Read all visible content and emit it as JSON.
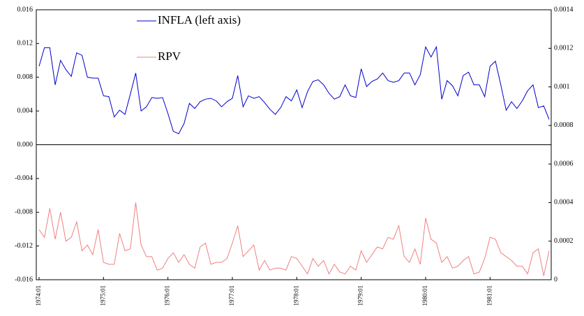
{
  "chart_data": {
    "type": "line",
    "categories": [
      "1974:01",
      null,
      null,
      null,
      null,
      null,
      null,
      null,
      null,
      null,
      null,
      null,
      "1975:01",
      null,
      null,
      null,
      null,
      null,
      null,
      null,
      null,
      null,
      null,
      null,
      "1976:01",
      null,
      null,
      null,
      null,
      null,
      null,
      null,
      null,
      null,
      null,
      null,
      "1977:01",
      null,
      null,
      null,
      null,
      null,
      null,
      null,
      null,
      null,
      null,
      null,
      "1978:01",
      null,
      null,
      null,
      null,
      null,
      null,
      null,
      null,
      null,
      null,
      null,
      "1979:01",
      null,
      null,
      null,
      null,
      null,
      null,
      null,
      null,
      null,
      null,
      null,
      "1980:01",
      null,
      null,
      null,
      null,
      null,
      null,
      null,
      null,
      null,
      null,
      null,
      "1981:01",
      null,
      null,
      null,
      null,
      null,
      null,
      null,
      null,
      null,
      null,
      null
    ],
    "series": [
      {
        "name": "INFLA (left axis)",
        "color": "#0000cc",
        "values": [
          0.0093,
          0.0115,
          0.0115,
          0.0071,
          0.01,
          0.0089,
          0.0081,
          0.0109,
          0.0106,
          0.008,
          0.0079,
          0.0079,
          0.0058,
          0.0057,
          0.0033,
          0.0041,
          0.0036,
          0.006,
          0.0085,
          0.004,
          0.0045,
          0.0056,
          0.0055,
          0.0056,
          0.0037,
          0.0016,
          0.0013,
          0.0025,
          0.0049,
          0.0043,
          0.0051,
          0.0054,
          0.0055,
          0.0052,
          0.0045,
          0.0051,
          0.0055,
          0.0082,
          0.0045,
          0.0058,
          0.0055,
          0.0057,
          0.005,
          0.0042,
          0.0036,
          0.0044,
          0.0057,
          0.0052,
          0.0065,
          0.0044,
          0.0063,
          0.0075,
          0.0077,
          0.0071,
          0.0061,
          0.0054,
          0.0057,
          0.0071,
          0.0058,
          0.0056,
          0.009,
          0.0069,
          0.0075,
          0.0078,
          0.0085,
          0.0076,
          0.0074,
          0.0076,
          0.0085,
          0.0085,
          0.0071,
          0.0083,
          0.0116,
          0.0104,
          0.0116,
          0.0054,
          0.0076,
          0.007,
          0.0058,
          0.0082,
          0.0086,
          0.0071,
          0.0071,
          0.0057,
          0.0093,
          0.0099,
          0.0071,
          0.0041,
          0.0051,
          0.0043,
          0.0052,
          0.0064,
          0.0071,
          0.0044,
          0.0046,
          0.003
        ]
      },
      {
        "name": "RPV",
        "color": "#f08080",
        "axis": "y2",
        "values": [
          0.00026,
          0.00022,
          0.00037,
          0.00021,
          0.00035,
          0.0002,
          0.00022,
          0.0003,
          0.00015,
          0.00018,
          0.00013,
          0.00026,
          9e-05,
          8e-05,
          8e-05,
          0.00024,
          0.00015,
          0.00016,
          0.0004,
          0.00018,
          0.00012,
          0.00012,
          5e-05,
          6e-05,
          0.00011,
          0.00014,
          9e-05,
          0.00013,
          8e-05,
          6e-05,
          0.00017,
          0.00019,
          8e-05,
          9e-05,
          9e-05,
          0.00011,
          0.00019,
          0.00028,
          0.00012,
          0.00015,
          0.00018,
          5e-05,
          0.0001,
          5e-05,
          6e-05,
          6e-05,
          5e-05,
          0.00012,
          0.00011,
          7e-05,
          3e-05,
          0.00011,
          7e-05,
          0.0001,
          3e-05,
          8e-05,
          4e-05,
          3e-05,
          7e-05,
          5e-05,
          0.00015,
          9e-05,
          0.00013,
          0.00017,
          0.00016,
          0.00022,
          0.00021,
          0.00028,
          0.00012,
          9e-05,
          0.00016,
          8e-05,
          0.00032,
          0.00021,
          0.00019,
          9e-05,
          0.00012,
          6e-05,
          7e-05,
          0.0001,
          0.00012,
          3e-05,
          4e-05,
          0.00011,
          0.00022,
          0.00021,
          0.00014,
          0.00012,
          0.0001,
          7e-05,
          7e-05,
          3e-05,
          0.00014,
          0.00016,
          2e-05,
          0.00015
        ]
      }
    ],
    "ylim": [
      -0.016,
      0.016
    ],
    "yticks": [
      -0.016,
      -0.012,
      -0.008,
      -0.004,
      {
        "value": 0,
        "label": "0.000"
      },
      0.004,
      0.008,
      0.012,
      0.016
    ],
    "y2lim": [
      0,
      0.0014
    ],
    "y2ticks": [
      0,
      0.0002,
      0.0004,
      0.0006,
      0.0008,
      0.001,
      0.0012,
      0.0014
    ],
    "zero_line": true,
    "grid": false,
    "legend": "top"
  }
}
